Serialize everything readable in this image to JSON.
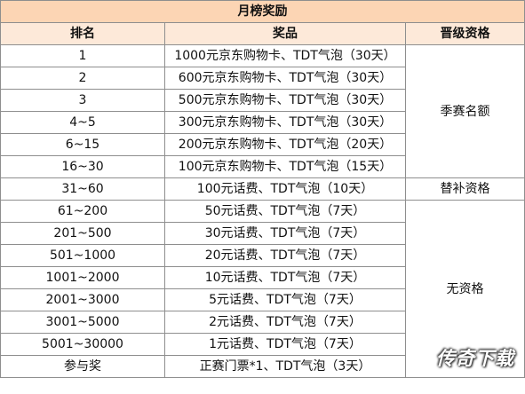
{
  "table": {
    "title": "月榜奖励",
    "headers": {
      "rank": "排名",
      "prize": "奖品",
      "qualification": "晋级资格"
    },
    "rows": [
      {
        "rank": "1",
        "prize": "1000元京东购物卡、TDT气泡（30天）"
      },
      {
        "rank": "2",
        "prize": "600元京东购物卡、TDT气泡（30天）"
      },
      {
        "rank": "3",
        "prize": "500元京东购物卡、TDT气泡（30天）"
      },
      {
        "rank": "4~5",
        "prize": "300元京东购物卡、TDT气泡（30天）"
      },
      {
        "rank": "6~15",
        "prize": "200元京东购物卡、TDT气泡（20天）"
      },
      {
        "rank": "16~30",
        "prize": "100元京东购物卡、TDT气泡（15天）"
      },
      {
        "rank": "31~60",
        "prize": "100元话费、TDT气泡（10天）"
      },
      {
        "rank": "61~200",
        "prize": "50元话费、TDT气泡（7天）"
      },
      {
        "rank": "201~500",
        "prize": "30元话费、TDT气泡（7天）"
      },
      {
        "rank": "501~1000",
        "prize": "20元话费、TDT气泡（7天）"
      },
      {
        "rank": "1001~2000",
        "prize": "10元话费、TDT气泡（7天）"
      },
      {
        "rank": "2001~3000",
        "prize": "5元话费、TDT气泡（7天）"
      },
      {
        "rank": "3001~5000",
        "prize": "2元话费、TDT气泡（7天）"
      },
      {
        "rank": "5001~30000",
        "prize": "1元话费、TDT气泡（7天）"
      },
      {
        "rank": "参与奖",
        "prize": "正赛门票*1、TDT气泡（3天）"
      }
    ],
    "qualifications": {
      "season_slot": "季赛名额",
      "substitute": "替补资格",
      "none": "无资格"
    }
  },
  "watermark": "传奇下载",
  "colors": {
    "title_bg": "#fcd5b4",
    "header_bg": "#fde9d9",
    "border": "#8e8e8e"
  }
}
